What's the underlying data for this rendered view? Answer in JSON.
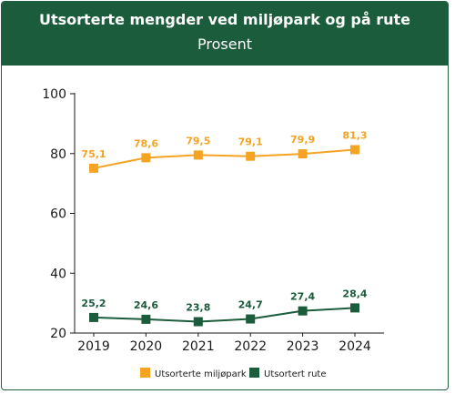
{
  "chart_data": {
    "type": "line",
    "title": "Utsorterte mengder ved miljøpark og på rute",
    "subtitle": "Prosent",
    "categories": [
      "2019",
      "2020",
      "2021",
      "2022",
      "2023",
      "2024"
    ],
    "ylim": [
      20,
      100
    ],
    "yticks": [
      20,
      40,
      60,
      80,
      100
    ],
    "grid": false,
    "legend_position": "bottom",
    "series": [
      {
        "name": "Utsorterte miljøpark",
        "color": "#f5a323",
        "values": [
          75.1,
          78.6,
          79.5,
          79.1,
          79.9,
          81.3
        ],
        "labels": [
          "75,1",
          "78,6",
          "79,5",
          "79,1",
          "79,9",
          "81,3"
        ]
      },
      {
        "name": "Utsortert rute",
        "color": "#1a5c3b",
        "values": [
          25.2,
          24.6,
          23.8,
          24.7,
          27.4,
          28.4
        ],
        "labels": [
          "25,2",
          "24,6",
          "23,8",
          "24,7",
          "27,4",
          "28,4"
        ]
      }
    ]
  }
}
